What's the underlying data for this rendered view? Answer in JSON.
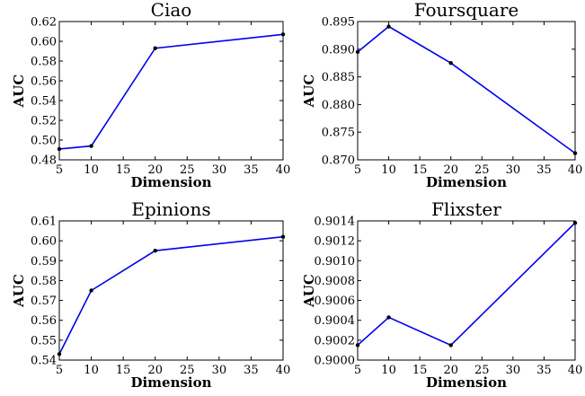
{
  "chart_data": [
    {
      "type": "line",
      "title": "Ciao",
      "xlabel": "Dimension",
      "ylabel": "AUC",
      "xlim": [
        5,
        40
      ],
      "ylim": [
        0.48,
        0.62
      ],
      "xticks": [
        "5",
        "10",
        "15",
        "20",
        "25",
        "30",
        "35",
        "40"
      ],
      "yticks": [
        "0.48",
        "0.50",
        "0.52",
        "0.54",
        "0.56",
        "0.58",
        "0.60",
        "0.62"
      ],
      "x": [
        5,
        10,
        20,
        40
      ],
      "y": [
        0.491,
        0.494,
        0.593,
        0.607
      ],
      "grid": false,
      "color": "#0000ee"
    },
    {
      "type": "line",
      "title": "Foursquare",
      "xlabel": "Dimension",
      "ylabel": "AUC",
      "xlim": [
        5,
        40
      ],
      "ylim": [
        0.87,
        0.895
      ],
      "xticks": [
        "5",
        "10",
        "15",
        "20",
        "25",
        "30",
        "35",
        "40"
      ],
      "yticks": [
        "0.870",
        "0.875",
        "0.880",
        "0.885",
        "0.890",
        "0.895"
      ],
      "x": [
        5,
        10,
        20,
        40
      ],
      "y": [
        0.8895,
        0.8941,
        0.8875,
        0.8712
      ],
      "grid": false,
      "color": "#0000ee"
    },
    {
      "type": "line",
      "title": "Epinions",
      "xlabel": "Dimension",
      "ylabel": "AUC",
      "xlim": [
        5,
        40
      ],
      "ylim": [
        0.54,
        0.61
      ],
      "xticks": [
        "5",
        "10",
        "15",
        "20",
        "25",
        "30",
        "35",
        "40"
      ],
      "yticks": [
        "0.54",
        "0.55",
        "0.56",
        "0.57",
        "0.58",
        "0.59",
        "0.60",
        "0.61"
      ],
      "x": [
        5,
        10,
        20,
        40
      ],
      "y": [
        0.543,
        0.575,
        0.595,
        0.602
      ],
      "grid": false,
      "color": "#0000ee"
    },
    {
      "type": "line",
      "title": "Flixster",
      "xlabel": "Dimension",
      "ylabel": "AUC",
      "xlim": [
        5,
        40
      ],
      "ylim": [
        0.9,
        0.9014
      ],
      "xticks": [
        "5",
        "10",
        "15",
        "20",
        "25",
        "30",
        "35",
        "40"
      ],
      "yticks": [
        "0.9000",
        "0.9002",
        "0.9004",
        "0.9006",
        "0.9008",
        "0.9010",
        "0.9012",
        "0.9014"
      ],
      "x": [
        5,
        10,
        20,
        40
      ],
      "y": [
        0.90015,
        0.90043,
        0.90015,
        0.90138
      ],
      "grid": false,
      "color": "#0000ee"
    }
  ]
}
